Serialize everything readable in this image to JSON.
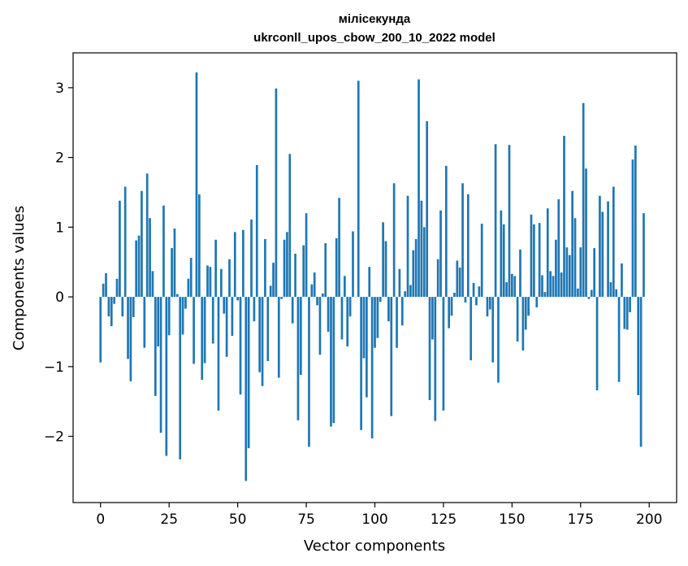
{
  "chart_data": {
    "type": "bar",
    "title": "мілісекунда",
    "subtitle": "ukrconll_upos_cbow_200_10_2022 model",
    "xlabel": "Vector components",
    "ylabel": "Components values",
    "xlim": [
      -10,
      210
    ],
    "ylim": [
      -2.95,
      3.5
    ],
    "xticks": [
      0,
      25,
      50,
      75,
      100,
      125,
      150,
      175,
      200
    ],
    "xtick_labels": [
      "0",
      "25",
      "50",
      "75",
      "100",
      "125",
      "150",
      "175",
      "200"
    ],
    "yticks": [
      -2,
      -1,
      0,
      1,
      2,
      3
    ],
    "ytick_labels": [
      "−2",
      "−1",
      "0",
      "1",
      "2",
      "3"
    ],
    "grid": false,
    "color": "#1f77b4",
    "values": [
      -0.94,
      0.19,
      0.34,
      -0.28,
      -0.42,
      -0.1,
      0.26,
      1.38,
      -0.28,
      1.58,
      -0.89,
      -1.21,
      -0.29,
      0.81,
      0.88,
      1.52,
      -0.73,
      1.77,
      1.13,
      0.37,
      -1.42,
      -0.71,
      -1.95,
      1.31,
      -2.28,
      -0.55,
      0.7,
      0.98,
      0.04,
      -2.33,
      -0.54,
      -0.17,
      0.26,
      0.56,
      -0.96,
      3.22,
      1.47,
      -1.19,
      -0.95,
      0.45,
      0.43,
      -0.67,
      0.82,
      -1.63,
      0.4,
      -0.24,
      -0.86,
      0.54,
      -0.56,
      0.93,
      -0.05,
      -1.4,
      0.96,
      -2.64,
      -2.17,
      1.11,
      -0.35,
      1.89,
      -1.08,
      -1.28,
      0.83,
      -0.92,
      0.16,
      0.49,
      2.99,
      -1.16,
      -0.03,
      0.82,
      0.93,
      2.05,
      -0.38,
      0.62,
      -1.77,
      -1.12,
      0.74,
      1.2,
      -2.15,
      0.18,
      0.35,
      -0.12,
      -0.83,
      0.05,
      0.77,
      -0.5,
      -1.86,
      -1.81,
      0.84,
      1.42,
      -0.61,
      0.3,
      -0.71,
      -0.28,
      0.94,
      0.0,
      3.1,
      -1.91,
      -0.88,
      -1.44,
      0.43,
      -2.03,
      -0.73,
      -0.59,
      -0.07,
      1.07,
      0.8,
      -0.35,
      -1.71,
      1.63,
      -0.73,
      0.4,
      -0.41,
      0.08,
      1.45,
      0.17,
      0.67,
      0.83,
      3.12,
      1.38,
      1.0,
      2.52,
      -1.48,
      -0.61,
      -1.78,
      0.54,
      1.24,
      -1.63,
      1.88,
      -0.45,
      -0.27,
      0.06,
      0.52,
      0.42,
      1.63,
      -0.08,
      1.47,
      -0.91,
      0.2,
      -0.12,
      0.15,
      1.05,
      0.0,
      -0.28,
      -0.18,
      -0.94,
      2.19,
      -1.23,
      1.24,
      1.04,
      0.21,
      2.18,
      0.33,
      0.3,
      -0.64,
      0.68,
      -0.77,
      -0.47,
      -0.27,
      1.18,
      1.04,
      -0.15,
      1.06,
      0.31,
      0.07,
      1.27,
      0.37,
      0.3,
      0.82,
      1.4,
      0.35,
      2.31,
      0.71,
      0.6,
      1.52,
      1.13,
      0.12,
      0.71,
      2.78,
      1.84,
      -0.03,
      0.1,
      0.7,
      -1.34,
      1.45,
      1.22,
      0.0,
      1.37,
      0.21,
      1.58,
      0.11,
      -1.22,
      0.48,
      -0.46,
      -0.47,
      -0.22,
      1.97,
      2.17,
      -1.41,
      -2.15,
      1.2
    ]
  }
}
